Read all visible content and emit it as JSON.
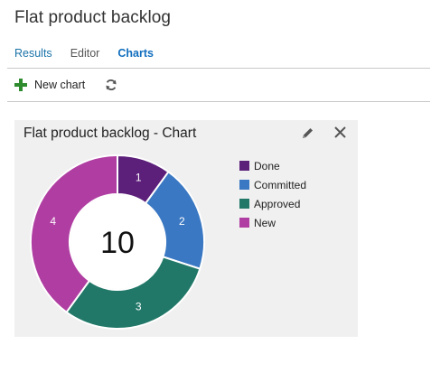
{
  "page": {
    "title": "Flat product backlog"
  },
  "tabs": [
    {
      "label": "Results"
    },
    {
      "label": "Editor"
    },
    {
      "label": "Charts"
    }
  ],
  "toolbar": {
    "new_chart_label": "New chart",
    "new_chart_icon": "plus-icon",
    "refresh_icon": "refresh-icon"
  },
  "chart_panel": {
    "title": "Flat product backlog - Chart",
    "edit_icon": "pencil-icon",
    "close_icon": "close-icon"
  },
  "chart_data": {
    "type": "pie",
    "style": "donut",
    "title": "Flat product backlog - Chart",
    "total_label": "10",
    "categories": [
      "Done",
      "Committed",
      "Approved",
      "New"
    ],
    "values": [
      1,
      2,
      3,
      4
    ],
    "colors": [
      "#5c1f7a",
      "#3a78c3",
      "#217868",
      "#b03ea2"
    ],
    "legend_position": "right"
  }
}
